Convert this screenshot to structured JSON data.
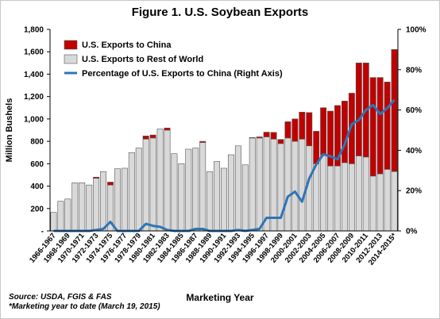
{
  "chart_data": {
    "type": "bar",
    "stacked": true,
    "title": "Figure 1. U.S. Soybean Exports",
    "xlabel": "Marketing Year",
    "ylabel": "Million Bushels",
    "ylim": [
      0,
      1800
    ],
    "y_ticks": [
      "-",
      "200",
      "400",
      "600",
      "800",
      "1,000",
      "1,200",
      "1,400",
      "1,600",
      "1,800"
    ],
    "y2lim": [
      0,
      100
    ],
    "y2_ticks": [
      "0%",
      "20%",
      "40%",
      "60%",
      "80%",
      "100%"
    ],
    "categories": [
      "1966-1967",
      "1967-1968",
      "1968-1969",
      "1969-1970",
      "1970-1971",
      "1971-1972",
      "1972-1973",
      "1973-1974",
      "1974-1975",
      "1975-1976",
      "1976-1977",
      "1977-1978",
      "1978-1979",
      "1979-1980",
      "1980-1981",
      "1981-1982",
      "1982-1983",
      "1983-1984",
      "1984-1985",
      "1985-1986",
      "1986-1987",
      "1987-1988",
      "1988-1989",
      "1989-1990",
      "1990-1991",
      "1991-1992",
      "1992-1993",
      "1993-1994",
      "1994-1995",
      "1995-1996",
      "1996-1997",
      "1997-1998",
      "1998-1999",
      "1999-2000",
      "2000-2001",
      "2001-2002",
      "2002-2003",
      "2003-2004",
      "2004-2005",
      "2005-2006",
      "2006-2007",
      "2007-2008",
      "2008-2009",
      "2009-2010",
      "2010-2011",
      "2011-2012",
      "2012-2013",
      "2013-2014",
      "2014-2015*"
    ],
    "x_tick_labels": [
      "1966-1967",
      "1968-1969",
      "1970-1971",
      "1972-1973",
      "1974-1975",
      "1976-1977",
      "1978-1979",
      "1980-1981",
      "1982-1983",
      "1984-1985",
      "1986-1987",
      "1988-1989",
      "1990-1991",
      "1992-1993",
      "1994-1995",
      "1996-1997",
      "1998-1999",
      "2000-2001",
      "2002-2003",
      "2004-2005",
      "2006-2007",
      "2008-2009",
      "2010-2011",
      "2012-2013",
      "2014-2015*"
    ],
    "series": [
      {
        "name": "U.S. Exports to China",
        "color": "#c00000",
        "axis": "left",
        "values": [
          0,
          0,
          0,
          0,
          0,
          0,
          10,
          0,
          26,
          0,
          0,
          0,
          0,
          28,
          27,
          0,
          19,
          0,
          0,
          0,
          0,
          10,
          0,
          0,
          0,
          0,
          0,
          0,
          4,
          10,
          42,
          60,
          37,
          145,
          200,
          241,
          297,
          290,
          420,
          490,
          540,
          550,
          630,
          830,
          840,
          880,
          860,
          780,
          1090
        ]
      },
      {
        "name": "U.S. Exports to Rest of World",
        "color": "#d9d9d9",
        "axis": "left",
        "values": [
          165,
          265,
          285,
          430,
          430,
          410,
          470,
          530,
          410,
          555,
          560,
          700,
          740,
          820,
          830,
          910,
          900,
          690,
          600,
          730,
          740,
          790,
          530,
          620,
          560,
          680,
          760,
          590,
          830,
          830,
          840,
          820,
          780,
          830,
          800,
          820,
          760,
          600,
          680,
          580,
          580,
          610,
          600,
          670,
          660,
          490,
          510,
          550,
          530
        ]
      },
      {
        "name": "Percentage of U.S. Exports to China (Right Axis)",
        "color": "#2e75b6",
        "axis": "right",
        "values": [
          0,
          0,
          0,
          0,
          0,
          0,
          0.5,
          1,
          4.5,
          0,
          0,
          0,
          0,
          3.5,
          2.5,
          2,
          0.5,
          0,
          0,
          0,
          1,
          1,
          0,
          0,
          0,
          0,
          0.5,
          0,
          0.5,
          1,
          6.5,
          6.5,
          6.5,
          17,
          19.5,
          14.5,
          26,
          33,
          38,
          37,
          35.5,
          43,
          53,
          55,
          60,
          62.5,
          58,
          61,
          65
        ]
      }
    ],
    "legend_position": "top-left"
  },
  "source_note": {
    "line1": "Source: USDA, FGIS & FAS",
    "line2": "*Marketing year to date (March 19, 2015)"
  }
}
